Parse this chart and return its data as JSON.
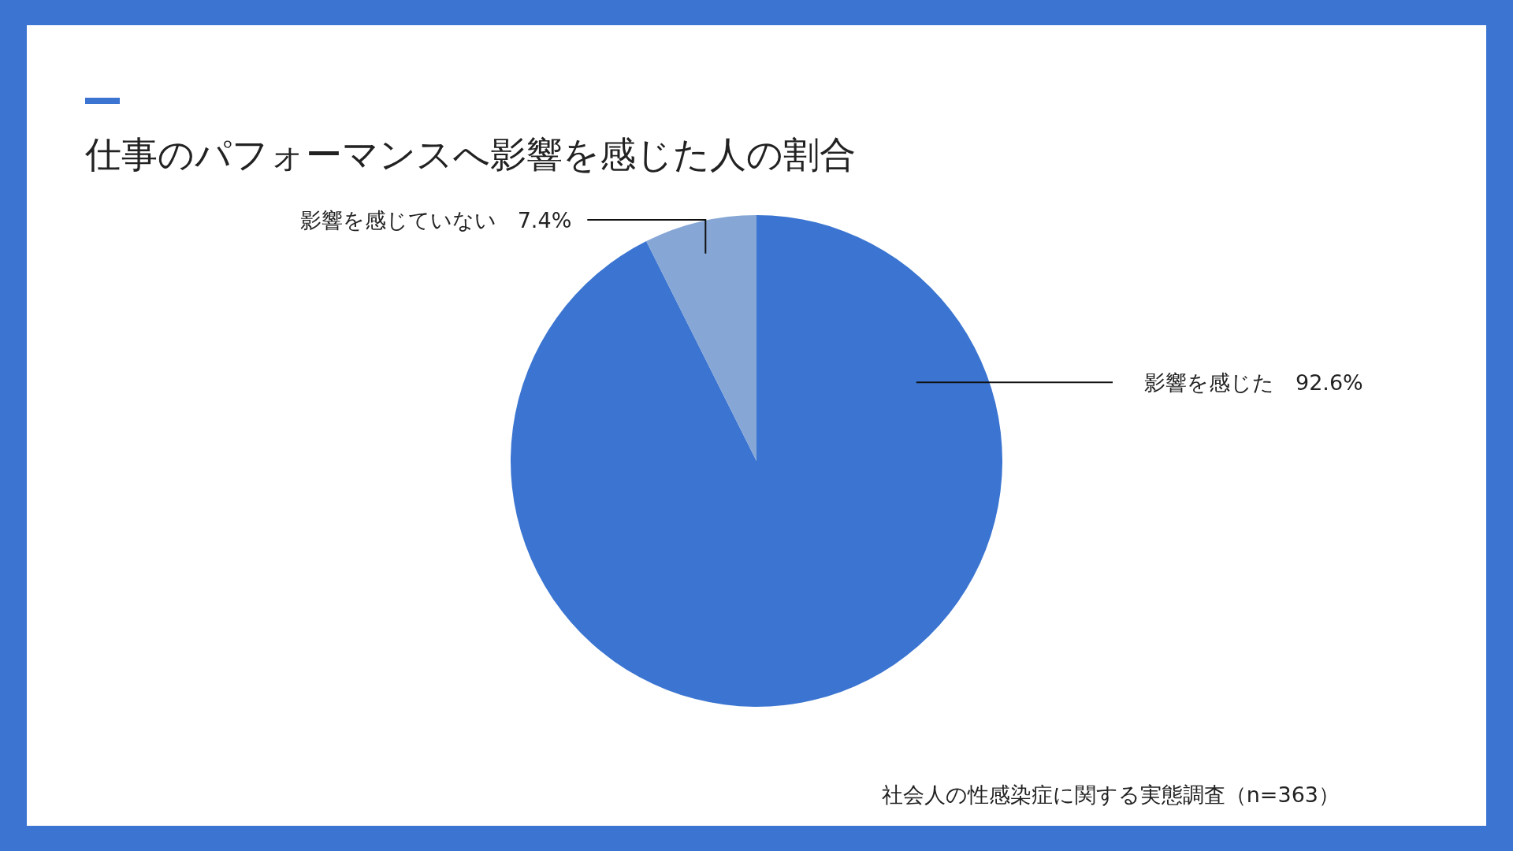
{
  "chart_data": {
    "type": "pie",
    "title": "仕事のパフォーマンスへ影響を感じた人の割合",
    "categories": [
      "影響を感じた　92.6%",
      "影響を感じていない　7.4%"
    ],
    "values": [
      92.6,
      7.4
    ],
    "colors": [
      "#3b75d1",
      "#86a6d6"
    ],
    "annotations": [
      "社会人の性感染症に関する実態調査（n=363）"
    ]
  }
}
